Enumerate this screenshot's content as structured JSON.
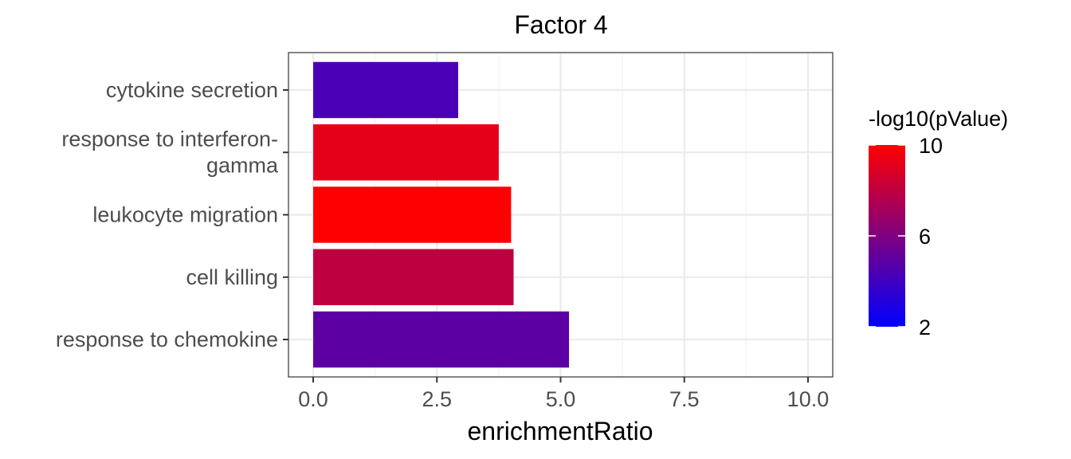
{
  "chart_data": {
    "type": "bar",
    "orientation": "horizontal",
    "title": "Factor 4",
    "xlabel": "enrichmentRatio",
    "ylabel": "",
    "xlim": [
      -0.5,
      10.5
    ],
    "xticks": [
      0.0,
      2.5,
      5.0,
      7.5,
      10.0
    ],
    "xtick_labels": [
      "0.0",
      "2.5",
      "5.0",
      "7.5",
      "10.0"
    ],
    "grid": true,
    "categories": [
      "cytokine secretion",
      "response to interferon-gamma",
      "leukocyte migration",
      "cell killing",
      "response to chemokine"
    ],
    "category_labels": [
      [
        "cytokine secretion"
      ],
      [
        "response to interferon-",
        "gamma"
      ],
      [
        "leukocyte migration"
      ],
      [
        "cell killing"
      ],
      [
        "response to chemokine"
      ]
    ],
    "values": [
      2.93,
      3.75,
      4.0,
      4.05,
      5.17
    ],
    "color_values": [
      4.3,
      9.2,
      10.0,
      8.0,
      4.9
    ],
    "colorbar": {
      "title": "-log10(pValue)",
      "range": [
        2,
        10
      ],
      "ticks": [
        2,
        6,
        10
      ],
      "tick_labels": [
        "2",
        "6",
        "10"
      ],
      "low_color": "#0000ff",
      "high_color": "#ff0000",
      "placement": "right"
    }
  }
}
